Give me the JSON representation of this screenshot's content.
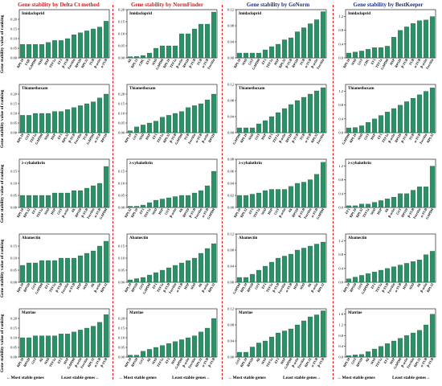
{
  "colors": {
    "bar": "#2a9066",
    "bar_edge": "#13543a",
    "red": "#e0151b",
    "blue": "#1a2f8c"
  },
  "columns": [
    {
      "title": "Gene stability by Delta Ct method",
      "color": "red"
    },
    {
      "title": "Gene stability by NormFinder",
      "color": "red"
    },
    {
      "title": "Gene stability by GeNorm",
      "color": "blue"
    },
    {
      "title": "Gene stability by BestKeeper",
      "color": "blue"
    }
  ],
  "ylabel": "Gene stability value of ranking",
  "footer": {
    "most": "Most stable genes",
    "least": "Least stable genes"
  },
  "chart_data": [
    {
      "type": "bar",
      "title": "Imidacloprid",
      "ylim": [
        0,
        0.25
      ],
      "yticks": [
        "0.00",
        "0.05",
        "0.10",
        "0.15",
        "0.20"
      ],
      "categories": [
        "RPL10",
        "UQF",
        "GAPDH",
        "SOD",
        "HSP",
        "TEF1a",
        "EF1",
        "β-TUB",
        "Ferritin",
        "RPS20",
        "RPL32",
        "TUB",
        "β-actin",
        "α-TUB"
      ],
      "values": [
        0.07,
        0.07,
        0.07,
        0.07,
        0.08,
        0.09,
        0.09,
        0.1,
        0.12,
        0.13,
        0.14,
        0.15,
        0.16,
        0.19
      ]
    },
    {
      "type": "bar",
      "title": "Imidacloprid",
      "ylim": [
        0,
        0.2
      ],
      "yticks": [
        "0.00",
        "0.05",
        "0.10",
        "0.15",
        "0.20"
      ],
      "categories": [
        "Ak",
        "RPL13",
        "CHC",
        "EF1",
        "SOD",
        "GAPDH",
        "RPL10",
        "TEF1a",
        "β-actin",
        "RPS20",
        "β-TUB",
        "TUB",
        "α-TUB",
        "Ferritin"
      ],
      "values": [
        0.005,
        0.006,
        0.01,
        0.02,
        0.04,
        0.05,
        0.05,
        0.05,
        0.1,
        0.1,
        0.12,
        0.14,
        0.14,
        0.19
      ]
    },
    {
      "type": "bar",
      "title": "Imidacloprid",
      "ylim": [
        0,
        0.12
      ],
      "yticks": [
        "0.00",
        "0.04",
        "0.08",
        "0.12"
      ],
      "categories": [
        "RPL10",
        "SOD",
        "GST",
        "GAPDH",
        "EF1",
        "TEF1a",
        "HSP",
        "RPL32",
        "β-TUB",
        "RPS20",
        "TUB",
        "α-TUB",
        "β-actin",
        "Ferritin"
      ],
      "values": [
        0.012,
        0.012,
        0.012,
        0.012,
        0.02,
        0.028,
        0.034,
        0.045,
        0.05,
        0.065,
        0.075,
        0.085,
        0.095,
        0.115
      ]
    },
    {
      "type": "bar",
      "title": "Imidacloprid",
      "ylim": [
        0,
        1.4
      ],
      "yticks": [
        "0.0",
        "0.4",
        "0.8",
        "1.2"
      ],
      "categories": [
        "RPL10",
        "SOD",
        "GST",
        "CHC",
        "EF1",
        "TEF1a",
        "GAPDH",
        "HSP",
        "RPS20",
        "β-TUB",
        "TUB",
        "α-TUB",
        "β-actin",
        "Ferritin"
      ],
      "values": [
        0.14,
        0.17,
        0.2,
        0.25,
        0.3,
        0.3,
        0.34,
        0.6,
        0.8,
        0.9,
        1.0,
        1.08,
        1.1,
        1.2
      ]
    },
    {
      "type": "bar",
      "title": "Thiamethoxam",
      "ylim": [
        0,
        0.25
      ],
      "yticks": [
        "0.00",
        "0.05",
        "0.10",
        "0.15",
        "0.20"
      ],
      "categories": [
        "RPL10",
        "GST",
        "TEF1a",
        "GAPDH",
        "SOD",
        "HSP",
        "EF1",
        "RPL32",
        "β-TUB",
        "Ferritin",
        "TUB",
        "GAPDH",
        "α-TUB",
        "RPS20"
      ],
      "values": [
        0.09,
        0.09,
        0.1,
        0.1,
        0.1,
        0.11,
        0.11,
        0.12,
        0.13,
        0.14,
        0.15,
        0.16,
        0.18,
        0.2
      ]
    },
    {
      "type": "bar",
      "title": "Thiamethoxam",
      "ylim": [
        0,
        0.25
      ],
      "yticks": [
        "0.00",
        "0.05",
        "0.10",
        "0.15",
        "0.20"
      ],
      "categories": [
        "RPL10",
        "GST",
        "SOD",
        "HSP",
        "EF1",
        "TEF1a",
        "RPL32",
        "β-TUB",
        "GAPDH",
        "TUB",
        "Ferritin",
        "α-TUB",
        "β-actin",
        "RPS20"
      ],
      "values": [
        0.01,
        0.03,
        0.04,
        0.05,
        0.06,
        0.08,
        0.09,
        0.1,
        0.11,
        0.13,
        0.14,
        0.15,
        0.17,
        0.2
      ]
    },
    {
      "type": "bar",
      "title": "Thiamethoxam",
      "ylim": [
        0,
        0.12
      ],
      "yticks": [
        "0.00",
        "0.04",
        "0.08",
        "0.12"
      ],
      "categories": [
        "GAPDH",
        "RPL10",
        "SOD",
        "GST",
        "HSP",
        "EF1",
        "TEF1a",
        "β-actin",
        "RPS20",
        "β-TUB",
        "TUB",
        "α-TUB",
        "RPL32",
        "Ferritin"
      ],
      "values": [
        0.012,
        0.012,
        0.012,
        0.022,
        0.03,
        0.04,
        0.05,
        0.06,
        0.07,
        0.08,
        0.088,
        0.096,
        0.104,
        0.112
      ]
    },
    {
      "type": "bar",
      "title": "Thiamethoxam",
      "ylim": [
        0,
        1.4
      ],
      "yticks": [
        "0.0",
        "0.4",
        "0.8",
        "1.2"
      ],
      "categories": [
        "GAPDH",
        "RPL10",
        "SOD",
        "GST",
        "HSP",
        "EF1",
        "TEF1a",
        "β-actin",
        "RPS20",
        "β-TUB",
        "TUB",
        "α-TUB",
        "Ferritin",
        "RPL32"
      ],
      "values": [
        0.14,
        0.15,
        0.2,
        0.3,
        0.4,
        0.5,
        0.6,
        0.7,
        0.8,
        0.9,
        1.0,
        1.1,
        1.2,
        1.3
      ]
    },
    {
      "type": "bar",
      "title": "λ-cyhalothrin",
      "ylim": [
        0,
        0.2
      ],
      "yticks": [
        "0.00",
        "0.05",
        "0.10",
        "0.15"
      ],
      "categories": [
        "RPL10",
        "RPL32",
        "EF1",
        "TEF1a",
        "SOD",
        "HSP",
        "GST",
        "β-actin",
        "Ak",
        "RPS20",
        "β-TUB",
        "Ferritin",
        "α-TUB",
        "GAPDH"
      ],
      "values": [
        0.05,
        0.05,
        0.05,
        0.05,
        0.05,
        0.06,
        0.06,
        0.06,
        0.07,
        0.07,
        0.08,
        0.09,
        0.1,
        0.17
      ]
    },
    {
      "type": "bar",
      "title": "λ-cyhalothrin",
      "ylim": [
        0,
        0.2
      ],
      "yticks": [
        "0.00",
        "0.05",
        "0.10",
        "0.15"
      ],
      "categories": [
        "RPL32",
        "RPL10",
        "EF1",
        "TEF1a",
        "SOD",
        "HSP",
        "GST",
        "β-actin",
        "Ak",
        "RPS20",
        "β-TUB",
        "Ferritin",
        "α-TUB",
        "GAPDH"
      ],
      "values": [
        0.005,
        0.005,
        0.01,
        0.02,
        0.03,
        0.035,
        0.04,
        0.045,
        0.05,
        0.05,
        0.06,
        0.07,
        0.09,
        0.15
      ]
    },
    {
      "type": "bar",
      "title": "λ-cyhalothrin",
      "ylim": [
        0,
        0.08
      ],
      "yticks": [
        "0.00",
        "0.02",
        "0.04",
        "0.06",
        "0.08"
      ],
      "categories": [
        "RPL10",
        "RPL32",
        "EF1",
        "TEF1a",
        "SOD",
        "HSP",
        "GST",
        "β-actin",
        "Ak",
        "RPS20",
        "β-TUB",
        "Ferritin",
        "α-TUB",
        "GAPDH"
      ],
      "values": [
        0.02,
        0.02,
        0.022,
        0.024,
        0.028,
        0.03,
        0.03,
        0.03,
        0.035,
        0.04,
        0.042,
        0.046,
        0.055,
        0.075
      ]
    },
    {
      "type": "bar",
      "title": "λ-cyhalothrin",
      "ylim": [
        0,
        1.4
      ],
      "yticks": [
        "0.0",
        "0.4",
        "0.8",
        "1.2"
      ],
      "categories": [
        "EF1",
        "RPL10",
        "RPL32",
        "TEF1a",
        "SOD",
        "HSP",
        "Ak",
        "β-actin",
        "GST",
        "RPS20",
        "β-TUB",
        "Ferritin",
        "α-TUB",
        "GAPDH"
      ],
      "values": [
        0.05,
        0.05,
        0.1,
        0.1,
        0.15,
        0.2,
        0.25,
        0.3,
        0.4,
        0.4,
        0.5,
        0.6,
        0.6,
        1.2
      ]
    },
    {
      "type": "bar",
      "title": "Abamectin",
      "ylim": [
        0,
        0.2
      ],
      "yticks": [
        "0.00",
        "0.05",
        "0.10",
        "0.15"
      ],
      "categories": [
        "RPL10",
        "RPS20",
        "GST",
        "GAPDH",
        "EF1",
        "TEF1a",
        "β-TUB",
        "Ferritin",
        "α-TUB",
        "HSP",
        "SOD",
        "Ak",
        "β-actin",
        "RPL32"
      ],
      "values": [
        0.07,
        0.08,
        0.08,
        0.09,
        0.09,
        0.09,
        0.1,
        0.1,
        0.1,
        0.11,
        0.12,
        0.13,
        0.15,
        0.17
      ]
    },
    {
      "type": "bar",
      "title": "Abamectin",
      "ylim": [
        0,
        0.2
      ],
      "yticks": [
        "0.00",
        "0.05",
        "0.10",
        "0.15"
      ],
      "categories": [
        "RPL10",
        "RPS20",
        "GST",
        "GAPDH",
        "EF1",
        "TEF1a",
        "β-TUB",
        "Ferritin",
        "α-TUB",
        "HSP",
        "SOD",
        "Ak",
        "β-actin",
        "RPL32"
      ],
      "values": [
        0.01,
        0.015,
        0.02,
        0.03,
        0.04,
        0.05,
        0.06,
        0.07,
        0.08,
        0.09,
        0.1,
        0.12,
        0.14,
        0.16
      ]
    },
    {
      "type": "bar",
      "title": "Abamectin",
      "ylim": [
        0,
        0.12
      ],
      "yticks": [
        "0.00",
        "0.04",
        "0.08",
        "0.12"
      ],
      "categories": [
        "GAPDH",
        "RPL10",
        "RPS20",
        "GST",
        "EF1",
        "TEF1a",
        "β-TUB",
        "Ferritin",
        "α-TUB",
        "HSP",
        "SOD",
        "Ak",
        "β-actin",
        "RPL32"
      ],
      "values": [
        0.012,
        0.012,
        0.02,
        0.03,
        0.04,
        0.05,
        0.06,
        0.065,
        0.07,
        0.08,
        0.085,
        0.09,
        0.095,
        0.1
      ]
    },
    {
      "type": "bar",
      "title": "Abamectin",
      "ylim": [
        0,
        1.4
      ],
      "yticks": [
        "0.0",
        "0.4",
        "0.8",
        "1.2"
      ],
      "categories": [
        "RPL10",
        "RPS20",
        "GST",
        "GAPDH",
        "EF1",
        "TEF1a",
        "β-TUB",
        "Ferritin",
        "α-TUB",
        "HSP",
        "SOD",
        "Ak",
        "β-actin",
        "RPL32"
      ],
      "values": [
        0.1,
        0.15,
        0.2,
        0.25,
        0.3,
        0.35,
        0.4,
        0.45,
        0.5,
        0.55,
        0.6,
        0.65,
        0.8,
        0.9
      ]
    },
    {
      "type": "bar",
      "title": "Matrine",
      "ylim": [
        0,
        0.25
      ],
      "yticks": [
        "0.00",
        "0.05",
        "0.10",
        "0.15",
        "0.20"
      ],
      "categories": [
        "RPL10",
        "RPS20",
        "GST",
        "Ak",
        "SOD",
        "TEF1a",
        "EF1",
        "HSP",
        "GAPDH",
        "β-actin",
        "Ferritin",
        "RPL32",
        "α-TUB",
        "β-TUB"
      ],
      "values": [
        0.1,
        0.1,
        0.11,
        0.11,
        0.11,
        0.11,
        0.12,
        0.12,
        0.13,
        0.14,
        0.15,
        0.16,
        0.18,
        0.22
      ]
    },
    {
      "type": "bar",
      "title": "Matrine",
      "ylim": [
        0,
        0.25
      ],
      "yticks": [
        "0.00",
        "0.05",
        "0.10",
        "0.15",
        "0.20"
      ],
      "categories": [
        "RPL10",
        "RPS20",
        "GST",
        "Ak",
        "SOD",
        "TEF1a",
        "EF1",
        "HSP",
        "GAPDH",
        "β-actin",
        "Ferritin",
        "RPL32",
        "α-TUB",
        "β-TUB"
      ],
      "values": [
        0.01,
        0.01,
        0.03,
        0.04,
        0.05,
        0.06,
        0.07,
        0.08,
        0.09,
        0.1,
        0.11,
        0.13,
        0.15,
        0.2
      ]
    },
    {
      "type": "bar",
      "title": "Matrine",
      "ylim": [
        0,
        0.12
      ],
      "yticks": [
        "0.00",
        "0.04",
        "0.08",
        "0.12"
      ],
      "categories": [
        "GST",
        "RPL10",
        "RPS20",
        "Ak",
        "SOD",
        "TEF1a",
        "EF1",
        "HSP",
        "GAPDH",
        "β-actin",
        "Ferritin",
        "RPL32",
        "α-TUB",
        "β-TUB"
      ],
      "values": [
        0.012,
        0.012,
        0.025,
        0.035,
        0.04,
        0.05,
        0.06,
        0.065,
        0.07,
        0.08,
        0.09,
        0.1,
        0.105,
        0.115
      ]
    },
    {
      "type": "bar",
      "title": "Matrine",
      "ylim": [
        0,
        1.8
      ],
      "yticks": [
        "0.0",
        "0.4",
        "0.8",
        "1.2",
        "1.6"
      ],
      "categories": [
        "RPL10",
        "GST",
        "RPS20",
        "Ak",
        "SOD",
        "TEF1a",
        "EF1",
        "HSP",
        "GAPDH",
        "β-actin",
        "Ferritin",
        "RPL32",
        "α-TUB",
        "β-TUB"
      ],
      "values": [
        0.05,
        0.08,
        0.1,
        0.2,
        0.3,
        0.4,
        0.5,
        0.6,
        0.7,
        0.8,
        0.9,
        1.0,
        1.2,
        1.6
      ]
    }
  ]
}
